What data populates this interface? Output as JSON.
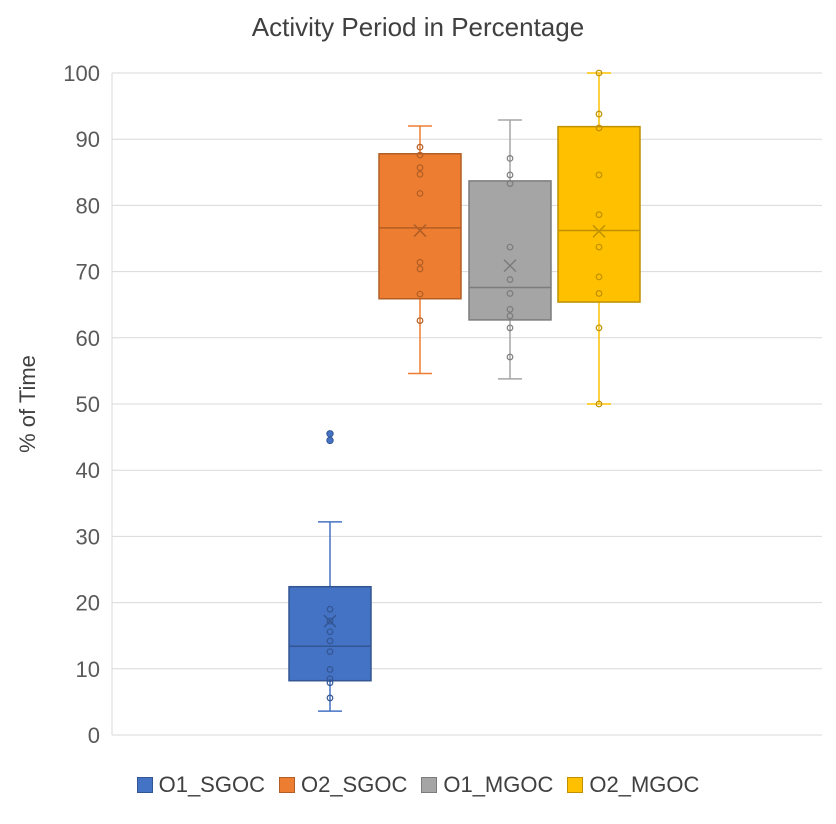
{
  "chart_data": {
    "type": "box",
    "title": "Activity Period in Percentage",
    "xlabel": "",
    "ylabel": "% of Time",
    "ylim": [
      0,
      100
    ],
    "yticks": [
      0,
      10,
      20,
      30,
      40,
      50,
      60,
      70,
      80,
      90,
      100
    ],
    "grid": true,
    "legend_position": "bottom",
    "series": [
      {
        "name": "O1_SGOC",
        "color": "#4472C4",
        "min": 3.6,
        "q1": 8.2,
        "median": 13.4,
        "q3": 22.4,
        "max": 32.2,
        "mean": 17.2,
        "points": [
          5.6,
          7.9,
          8.5,
          9.9,
          12.6,
          14.2,
          15.6,
          17.2,
          19.0
        ],
        "outliers": [
          44.5,
          45.5
        ]
      },
      {
        "name": "O2_SGOC",
        "color": "#ED7D31",
        "min": 54.6,
        "q1": 65.9,
        "median": 76.6,
        "q3": 87.8,
        "max": 92.0,
        "mean": 76.2,
        "points": [
          62.6,
          66.6,
          70.4,
          71.4,
          81.8,
          84.7,
          85.7,
          87.6,
          88.8
        ],
        "outliers": []
      },
      {
        "name": "O1_MGOC",
        "color": "#A5A5A5",
        "min": 53.8,
        "q1": 62.7,
        "median": 67.6,
        "q3": 83.7,
        "max": 92.9,
        "mean": 70.9,
        "points": [
          57.1,
          61.5,
          63.3,
          64.3,
          66.7,
          68.8,
          73.7,
          83.3,
          84.6,
          87.1
        ],
        "outliers": []
      },
      {
        "name": "O2_MGOC",
        "color": "#FFC000",
        "min": 50.0,
        "q1": 65.4,
        "median": 76.2,
        "q3": 91.9,
        "max": 100.0,
        "mean": 76.1,
        "points": [
          50.0,
          61.5,
          66.7,
          69.2,
          73.7,
          78.6,
          84.6,
          91.7,
          93.8,
          100.0
        ],
        "outliers": []
      }
    ]
  }
}
